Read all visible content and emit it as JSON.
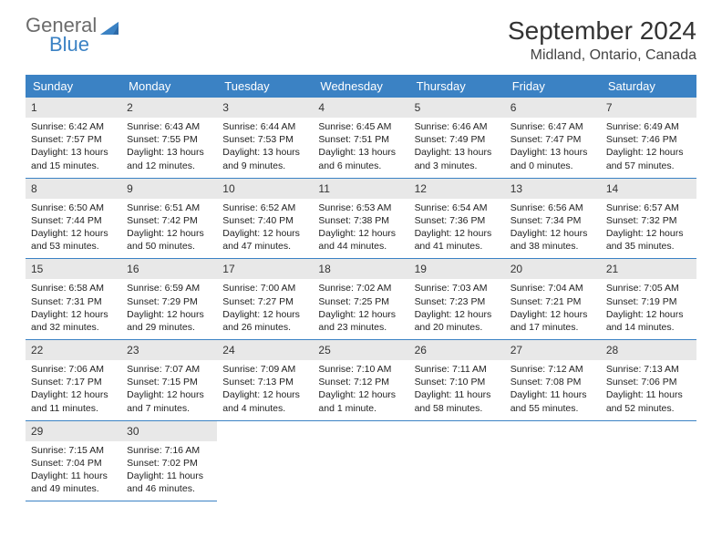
{
  "logo": {
    "general": "General",
    "blue": "Blue"
  },
  "title": "September 2024",
  "location": "Midland, Ontario, Canada",
  "month": 9,
  "year": 2024,
  "first_weekday_index": 0,
  "days_in_month": 30,
  "colors": {
    "header_bg": "#3b82c4",
    "header_text": "#ffffff",
    "cell_border": "#3b82c4",
    "shaded_bg": "#e8e8e8",
    "logo_gray": "#6b6b6b",
    "logo_blue": "#3b82c4"
  },
  "weekdays": [
    "Sunday",
    "Monday",
    "Tuesday",
    "Wednesday",
    "Thursday",
    "Friday",
    "Saturday"
  ],
  "days": [
    {
      "n": 1,
      "sunrise": "6:42 AM",
      "sunset": "7:57 PM",
      "dh": 13,
      "dm": 15
    },
    {
      "n": 2,
      "sunrise": "6:43 AM",
      "sunset": "7:55 PM",
      "dh": 13,
      "dm": 12
    },
    {
      "n": 3,
      "sunrise": "6:44 AM",
      "sunset": "7:53 PM",
      "dh": 13,
      "dm": 9
    },
    {
      "n": 4,
      "sunrise": "6:45 AM",
      "sunset": "7:51 PM",
      "dh": 13,
      "dm": 6
    },
    {
      "n": 5,
      "sunrise": "6:46 AM",
      "sunset": "7:49 PM",
      "dh": 13,
      "dm": 3
    },
    {
      "n": 6,
      "sunrise": "6:47 AM",
      "sunset": "7:47 PM",
      "dh": 13,
      "dm": 0
    },
    {
      "n": 7,
      "sunrise": "6:49 AM",
      "sunset": "7:46 PM",
      "dh": 12,
      "dm": 57
    },
    {
      "n": 8,
      "sunrise": "6:50 AM",
      "sunset": "7:44 PM",
      "dh": 12,
      "dm": 53
    },
    {
      "n": 9,
      "sunrise": "6:51 AM",
      "sunset": "7:42 PM",
      "dh": 12,
      "dm": 50
    },
    {
      "n": 10,
      "sunrise": "6:52 AM",
      "sunset": "7:40 PM",
      "dh": 12,
      "dm": 47
    },
    {
      "n": 11,
      "sunrise": "6:53 AM",
      "sunset": "7:38 PM",
      "dh": 12,
      "dm": 44
    },
    {
      "n": 12,
      "sunrise": "6:54 AM",
      "sunset": "7:36 PM",
      "dh": 12,
      "dm": 41
    },
    {
      "n": 13,
      "sunrise": "6:56 AM",
      "sunset": "7:34 PM",
      "dh": 12,
      "dm": 38
    },
    {
      "n": 14,
      "sunrise": "6:57 AM",
      "sunset": "7:32 PM",
      "dh": 12,
      "dm": 35
    },
    {
      "n": 15,
      "sunrise": "6:58 AM",
      "sunset": "7:31 PM",
      "dh": 12,
      "dm": 32
    },
    {
      "n": 16,
      "sunrise": "6:59 AM",
      "sunset": "7:29 PM",
      "dh": 12,
      "dm": 29
    },
    {
      "n": 17,
      "sunrise": "7:00 AM",
      "sunset": "7:27 PM",
      "dh": 12,
      "dm": 26
    },
    {
      "n": 18,
      "sunrise": "7:02 AM",
      "sunset": "7:25 PM",
      "dh": 12,
      "dm": 23
    },
    {
      "n": 19,
      "sunrise": "7:03 AM",
      "sunset": "7:23 PM",
      "dh": 12,
      "dm": 20
    },
    {
      "n": 20,
      "sunrise": "7:04 AM",
      "sunset": "7:21 PM",
      "dh": 12,
      "dm": 17
    },
    {
      "n": 21,
      "sunrise": "7:05 AM",
      "sunset": "7:19 PM",
      "dh": 12,
      "dm": 14
    },
    {
      "n": 22,
      "sunrise": "7:06 AM",
      "sunset": "7:17 PM",
      "dh": 12,
      "dm": 11
    },
    {
      "n": 23,
      "sunrise": "7:07 AM",
      "sunset": "7:15 PM",
      "dh": 12,
      "dm": 7
    },
    {
      "n": 24,
      "sunrise": "7:09 AM",
      "sunset": "7:13 PM",
      "dh": 12,
      "dm": 4
    },
    {
      "n": 25,
      "sunrise": "7:10 AM",
      "sunset": "7:12 PM",
      "dh": 12,
      "dm": 1
    },
    {
      "n": 26,
      "sunrise": "7:11 AM",
      "sunset": "7:10 PM",
      "dh": 11,
      "dm": 58
    },
    {
      "n": 27,
      "sunrise": "7:12 AM",
      "sunset": "7:08 PM",
      "dh": 11,
      "dm": 55
    },
    {
      "n": 28,
      "sunrise": "7:13 AM",
      "sunset": "7:06 PM",
      "dh": 11,
      "dm": 52
    },
    {
      "n": 29,
      "sunrise": "7:15 AM",
      "sunset": "7:04 PM",
      "dh": 11,
      "dm": 49
    },
    {
      "n": 30,
      "sunrise": "7:16 AM",
      "sunset": "7:02 PM",
      "dh": 11,
      "dm": 46
    }
  ]
}
